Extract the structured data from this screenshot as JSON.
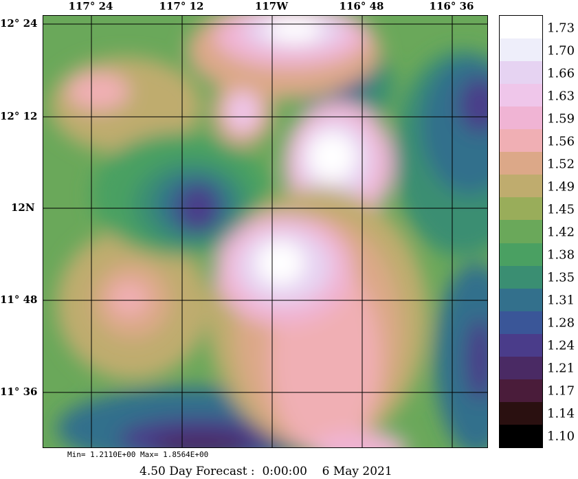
{
  "map": {
    "lon_labels": [
      "117° 24",
      "117° 12",
      "117W",
      "116° 48",
      "116° 36"
    ],
    "lat_labels": [
      "12° 24",
      "12° 12",
      "12N",
      "11° 48",
      "11° 36"
    ]
  },
  "colorbar": {
    "labels": [
      "1.73",
      "1.70",
      "1.66",
      "1.63",
      "1.59",
      "1.56",
      "1.52",
      "1.49",
      "1.45",
      "1.42",
      "1.38",
      "1.35",
      "1.31",
      "1.28",
      "1.24",
      "1.21",
      "1.17",
      "1.14",
      "1.10"
    ],
    "colors": [
      "#ffffff",
      "#eeeefa",
      "#e6d3f2",
      "#efc6ea",
      "#f0b4d4",
      "#f0afb4",
      "#dca888",
      "#bfac6e",
      "#99ad5a",
      "#6aa85a",
      "#4aa062",
      "#3a8e72",
      "#33708c",
      "#3a5698",
      "#4a3c8a",
      "#4a2a64",
      "#4a1c3a",
      "#2a1010",
      "#000000"
    ]
  },
  "stats": {
    "text": "Min= 1.2110E+00   Max= 1.8564E+00"
  },
  "footer": {
    "forecast": "4.50 Day Forecast :  0:00:00    6 May 2021"
  }
}
